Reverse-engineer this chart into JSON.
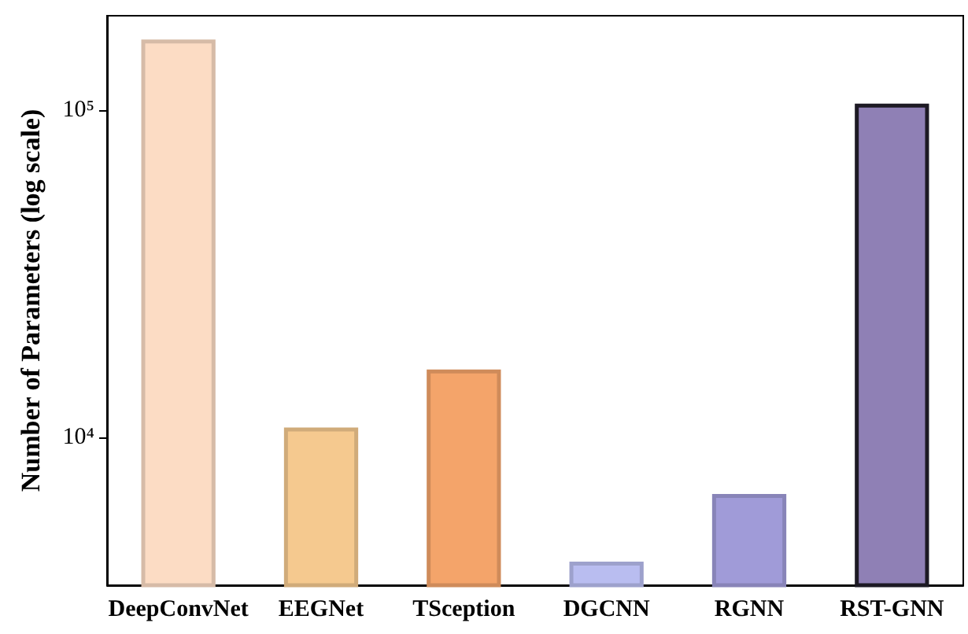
{
  "chart_data": {
    "type": "bar",
    "ylabel": "Number of Parameters (log scale)",
    "categories": [
      "DeepConvNet",
      "EEGNet",
      "TSception",
      "DGCNN",
      "RGNN",
      "RST-GNN"
    ],
    "values": [
      164000,
      10700,
      16100,
      4170,
      6710,
      104500
    ],
    "colors": [
      "#fcdcc4",
      "#f5c98f",
      "#f4a46a",
      "#b9bdf0",
      "#a09bd8",
      "#8f80b5"
    ],
    "log": "y",
    "ylim": [
      3530,
      194000
    ],
    "yticks": [
      {
        "value": 10000,
        "label": "10⁴"
      },
      {
        "value": 100000,
        "label": "10⁵"
      }
    ],
    "grid": false
  }
}
